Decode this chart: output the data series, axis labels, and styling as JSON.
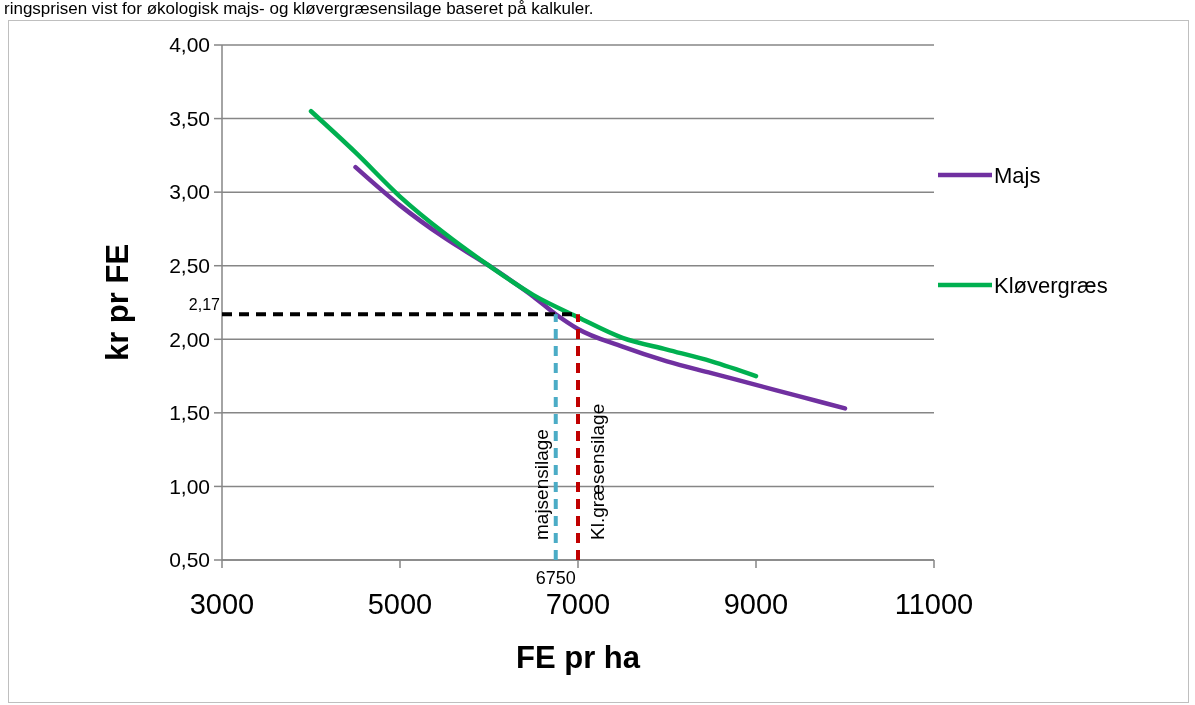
{
  "chart_data": {
    "type": "line",
    "title": "ringsprisen vist for økologisk majs- og kløvergræsensilage baseret på kalkuler.",
    "xlabel": "FE pr ha",
    "ylabel": "kr pr FE",
    "series": [
      {
        "name": "Majs",
        "color": "#7030a0",
        "x": [
          4500,
          5000,
          5500,
          6000,
          6500,
          6750,
          7000,
          7500,
          8000,
          8500,
          9000,
          9500,
          10000
        ],
        "values": [
          3.17,
          2.91,
          2.69,
          2.5,
          2.29,
          2.17,
          2.07,
          1.95,
          1.85,
          1.77,
          1.69,
          1.61,
          1.53
        ]
      },
      {
        "name": "Kløvergræs",
        "color": "#00b050",
        "x": [
          4000,
          4500,
          5000,
          5500,
          6000,
          6500,
          7000,
          7500,
          8000,
          8500,
          9000
        ],
        "values": [
          3.55,
          3.27,
          2.97,
          2.72,
          2.5,
          2.3,
          2.15,
          2.01,
          1.93,
          1.85,
          1.75
        ]
      }
    ],
    "xlim": [
      3000,
      11000
    ],
    "xticks": [
      3000,
      5000,
      7000,
      9000,
      11000
    ],
    "ylim": [
      0.5,
      4.0
    ],
    "yticks": [
      {
        "value": 0.5,
        "label": "0,50"
      },
      {
        "value": 1.0,
        "label": "1,00"
      },
      {
        "value": 1.5,
        "label": "1,50"
      },
      {
        "value": 2.0,
        "label": "2,00"
      },
      {
        "value": 2.5,
        "label": "2,50"
      },
      {
        "value": 3.0,
        "label": "3,00"
      },
      {
        "value": 3.5,
        "label": "3,50"
      },
      {
        "value": 4.0,
        "label": "4,00"
      }
    ],
    "grid": "y",
    "legend": "right",
    "ref_lines": [
      {
        "axis": "y",
        "value": 2.17,
        "label": "2,17",
        "color": "#000000",
        "line_style": "dashed"
      },
      {
        "axis": "x",
        "value": 6750,
        "label": "majsensilage",
        "color": "#4bacc6",
        "line_style": "dashed"
      },
      {
        "axis": "x",
        "value": 7000,
        "label": "Kl.græsensilage",
        "color": "#c00000",
        "line_style": "dashed"
      }
    ],
    "annotations": [
      "6750"
    ]
  }
}
